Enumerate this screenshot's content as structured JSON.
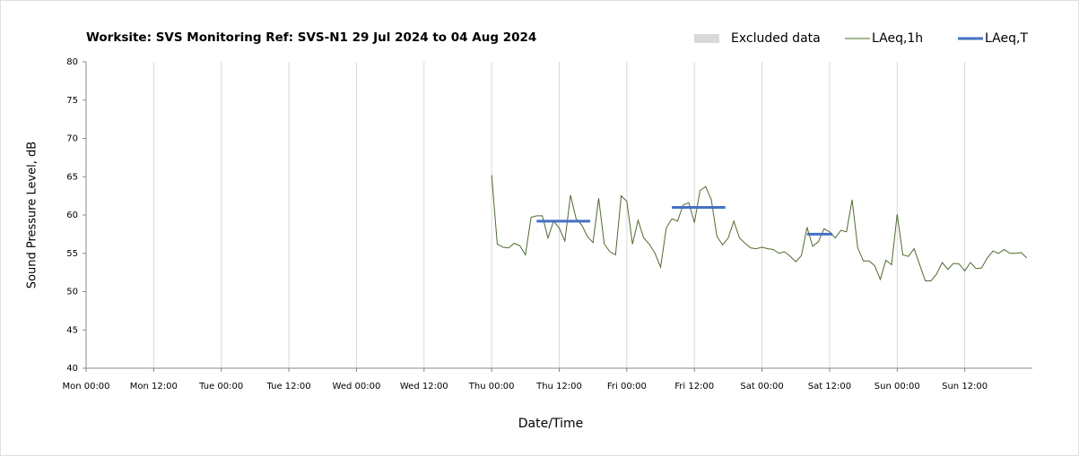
{
  "chart_data": {
    "type": "line",
    "title": "Worksite: SVS   Monitoring Ref: SVS-N1    29 Jul 2024 to 04 Aug 2024",
    "x_label": "Date/Time",
    "y_label": "Sound Pressure Level, dB",
    "excluded_legend": {
      "name": "Excluded data",
      "color": "#d9d9d9"
    },
    "xlim": [
      0,
      168
    ],
    "xticks": [
      {
        "value": 0,
        "label": "Mon 00:00"
      },
      {
        "value": 12,
        "label": "Mon 12:00"
      },
      {
        "value": 24,
        "label": "Tue 00:00"
      },
      {
        "value": 36,
        "label": "Tue 12:00"
      },
      {
        "value": 48,
        "label": "Wed 00:00"
      },
      {
        "value": 60,
        "label": "Wed 12:00"
      },
      {
        "value": 72,
        "label": "Thu 00:00"
      },
      {
        "value": 84,
        "label": "Thu 12:00"
      },
      {
        "value": 96,
        "label": "Fri 00:00"
      },
      {
        "value": 108,
        "label": "Fri 12:00"
      },
      {
        "value": 120,
        "label": "Sat 00:00"
      },
      {
        "value": 132,
        "label": "Sat 12:00"
      },
      {
        "value": 144,
        "label": "Sun 00:00"
      },
      {
        "value": 156,
        "label": "Sun 12:00"
      }
    ],
    "ylim": [
      40,
      80
    ],
    "yticks": [
      40,
      45,
      50,
      55,
      60,
      65,
      70,
      75,
      80
    ],
    "grid": "x",
    "series": [
      {
        "name": "LAeq,1h",
        "color": "#4f6b2f",
        "width": 1,
        "x": [
          72,
          73,
          74,
          75,
          76,
          77,
          78,
          79,
          80,
          81,
          82,
          83,
          84,
          85,
          86,
          87,
          88,
          89,
          90,
          91,
          92,
          93,
          94,
          95,
          96,
          97,
          98,
          99,
          100,
          101,
          102,
          103,
          104,
          105,
          106,
          107,
          108,
          109,
          110,
          111,
          112,
          113,
          114,
          115,
          116,
          117,
          118,
          119,
          120,
          121,
          122,
          123,
          124,
          125,
          126,
          127,
          128,
          129,
          130,
          131,
          132,
          133,
          134,
          135,
          136,
          137,
          138,
          139,
          140,
          141,
          142,
          143,
          144,
          145,
          146,
          147,
          148,
          149,
          150,
          151,
          152,
          153,
          154,
          155,
          156,
          157,
          158,
          159,
          160,
          161,
          162,
          163,
          164,
          165,
          166,
          167
        ],
        "values": [
          65.2,
          56.2,
          55.8,
          55.7,
          56.3,
          56.0,
          54.8,
          59.7,
          59.9,
          59.9,
          57.0,
          59.2,
          58.3,
          56.6,
          62.6,
          59.5,
          58.7,
          57.2,
          56.4,
          62.2,
          56.2,
          55.2,
          54.8,
          62.5,
          61.8,
          56.2,
          59.3,
          57.0,
          56.2,
          55.0,
          53.2,
          58.3,
          59.5,
          59.2,
          61.3,
          61.6,
          59.0,
          63.2,
          63.7,
          62.0,
          57.2,
          56.1,
          57.0,
          59.2,
          57.0,
          56.3,
          55.7,
          55.6,
          55.8,
          55.6,
          55.5,
          55.0,
          55.2,
          54.6,
          53.9,
          54.7,
          58.4,
          55.9,
          56.5,
          58.2,
          57.8,
          57.0,
          58.0,
          57.8,
          62.0,
          55.7,
          54.0,
          54.0,
          53.4,
          51.6,
          54.1,
          53.5,
          60.1,
          54.8,
          54.6,
          55.6,
          53.5,
          51.4,
          51.4,
          52.3,
          53.8,
          52.9,
          53.7,
          53.6,
          52.7,
          53.8,
          53.0,
          53.1,
          54.4,
          55.3,
          55.0,
          55.5,
          55.0,
          55.0,
          55.1,
          54.4
        ]
      },
      {
        "name": "LAeq,T",
        "color": "#4472c4",
        "width": 3,
        "x": [
          80,
          89.5,
          95,
          104,
          113.5,
          120,
          128,
          132.5
        ],
        "values": [
          59.2,
          59.2,
          null,
          61.0,
          61.0,
          null,
          57.5,
          57.5
        ]
      }
    ]
  }
}
